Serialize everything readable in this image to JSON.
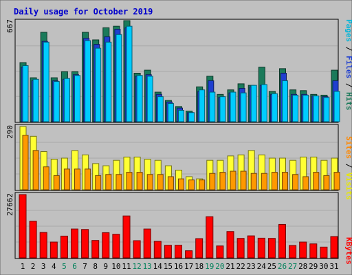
{
  "chart_data": {
    "type": "bar",
    "title": "Daily usage for October 2019",
    "days": [
      "1",
      "2",
      "3",
      "4",
      "5",
      "6",
      "7",
      "8",
      "9",
      "10",
      "11",
      "12",
      "13",
      "14",
      "15",
      "16",
      "17",
      "18",
      "19",
      "20",
      "21",
      "22",
      "23",
      "24",
      "25",
      "26",
      "27",
      "28",
      "29",
      "30",
      "31"
    ],
    "weekend_days": [
      "5",
      "6",
      "12",
      "13",
      "19",
      "20",
      "26",
      "27"
    ],
    "panels": [
      {
        "id": "top",
        "max_label": "667",
        "max": 667,
        "series": [
          {
            "name": "Hits",
            "color": "#1a7a5a",
            "values": [
              390,
              290,
              590,
              290,
              330,
              330,
              590,
              540,
              620,
              630,
              667,
              320,
              340,
              195,
              140,
              100,
              70,
              230,
              300,
              180,
              210,
              250,
              240,
              360,
              200,
              350,
              210,
              205,
              180,
              175,
              340
            ]
          },
          {
            "name": "Files",
            "color": "#1f3fd0",
            "values": [
              360,
              270,
              530,
              270,
              280,
              310,
              550,
              510,
              560,
              610,
              620,
              300,
              310,
              180,
              130,
              90,
              60,
              200,
              270,
              160,
              190,
              220,
              230,
              240,
              180,
              320,
              180,
              180,
              170,
              165,
              270
            ]
          },
          {
            "name": "Pages",
            "color": "#00ccff",
            "values": [
              370,
              280,
              525,
              265,
              285,
              305,
              535,
              485,
              525,
              575,
              630,
              305,
              300,
              165,
              120,
              75,
              60,
              210,
              195,
              165,
              195,
              190,
              240,
              245,
              185,
              270,
              175,
              175,
              170,
              160,
              200
            ]
          }
        ]
      },
      {
        "id": "middle",
        "max_label": "290",
        "max": 290,
        "series": [
          {
            "name": "Visits",
            "color": "#ffff33",
            "values": [
              290,
              245,
              175,
              140,
              145,
              180,
              160,
              120,
              110,
              135,
              150,
              150,
              140,
              135,
              110,
              90,
              60,
              50,
              135,
              135,
              155,
              160,
              180,
              160,
              145,
              145,
              135,
              150,
              150,
              135,
              145
            ]
          },
          {
            "name": "Sites",
            "color": "#ff9900",
            "values": [
              250,
              180,
              105,
              65,
              95,
              95,
              95,
              65,
              70,
              70,
              80,
              80,
              70,
              70,
              60,
              50,
              45,
              45,
              75,
              80,
              85,
              85,
              75,
              75,
              80,
              80,
              70,
              60,
              80,
              65,
              80
            ]
          }
        ]
      },
      {
        "id": "bottom",
        "max_label": "27662",
        "max": 27662,
        "series": [
          {
            "name": "KBytes",
            "color": "#ff0000",
            "values": [
              27662,
              16000,
              11100,
              6900,
              9500,
              12600,
              12400,
              7600,
              11000,
              10300,
              18300,
              7500,
              12600,
              7200,
              5500,
              5500,
              3100,
              8400,
              18000,
              5200,
              11500,
              8500,
              9600,
              8600,
              8500,
              14600,
              5400,
              6900,
              6100,
              4700,
              9300
            ]
          }
        ]
      }
    ],
    "legend": {
      "top": [
        {
          "text": "Pages",
          "color": "#00b4d8"
        },
        {
          "text": " / ",
          "color": "#000000"
        },
        {
          "text": "Files",
          "color": "#1f3fd0"
        },
        {
          "text": " / ",
          "color": "#000000"
        },
        {
          "text": "Hits",
          "color": "#1a7a5a"
        }
      ],
      "middle": [
        {
          "text": "Sites",
          "color": "#ff8800"
        },
        {
          "text": " / ",
          "color": "#000000"
        },
        {
          "text": "Visits",
          "color": "#e8e800"
        }
      ],
      "bottom": [
        {
          "text": "KBytes",
          "color": "#ff0000"
        }
      ]
    },
    "colors": {
      "background": "#c0c0c0",
      "title": "#0000cc",
      "weekday_label": "#000000",
      "weekend_label": "#00805a"
    },
    "grid": true
  }
}
